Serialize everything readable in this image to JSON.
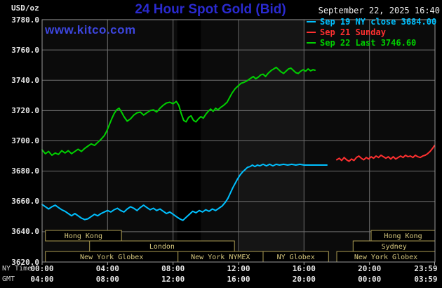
{
  "header": {
    "units": "USD/oz",
    "title": "24 Hour Spot Gold (Bid)",
    "datetime": "September 22, 2025 16:40",
    "watermark": "www.kitco.com"
  },
  "legend": [
    {
      "label": "Sep 19 NY close 3684.00",
      "color": "#00c0ff"
    },
    {
      "label": "Sep 21 Sunday",
      "color": "#ff3030"
    },
    {
      "label": "Sep 22 Last 3746.60",
      "color": "#00d000"
    }
  ],
  "axes": {
    "y": {
      "min": 3620,
      "max": 3780,
      "step": 20,
      "labels": [
        "3780.0",
        "3760.0",
        "3740.0",
        "3720.0",
        "3700.0",
        "3680.0",
        "3660.0",
        "3640.0",
        "3620.0"
      ]
    },
    "ny": {
      "label": "NY Time",
      "ticks": [
        "00:00",
        "04:00",
        "08:00",
        "12:00",
        "16:00",
        "20:00",
        "23:59"
      ]
    },
    "gmt": {
      "label": "GMT",
      "ticks": [
        "04:00",
        "08:00",
        "12:00",
        "16:00",
        "20:00",
        "00:00",
        "03:59"
      ]
    },
    "tick_hours": [
      0,
      4,
      8,
      12,
      16,
      20,
      23.98
    ],
    "grid_hours": [
      4,
      8,
      12,
      16,
      20
    ]
  },
  "sessions": {
    "border_color": "#ab9b52",
    "text_color": "#d6c77e",
    "rows": [
      [
        {
          "label": "Hong Kong",
          "start": 0.2,
          "end": 4.85
        },
        {
          "label": "Hong Kong",
          "start": 20.1,
          "end": 24
        }
      ],
      [
        {
          "label": "London",
          "start": 2.9,
          "end": 11.75
        },
        {
          "label": "Sydney",
          "start": 19.0,
          "end": 24
        }
      ],
      [
        {
          "label": "New York Globex",
          "start": 0.2,
          "end": 8.3
        },
        {
          "label": "New York NYMEX",
          "start": 8.3,
          "end": 13.5
        },
        {
          "label": "NY Globex",
          "start": 13.5,
          "end": 17.5
        },
        {
          "label": "New York Globex",
          "start": 18.0,
          "end": 24
        }
      ]
    ]
  },
  "chart_data": {
    "type": "line",
    "title": "24 Hour Spot Gold (Bid)",
    "xlabel": "NY Time (hours 0-24)",
    "ylabel": "USD/oz",
    "ylim": [
      3620,
      3780
    ],
    "xlim_hours": [
      0,
      24
    ],
    "grid": true,
    "legend_position": "top-right",
    "bands": [
      {
        "start": 8.25,
        "end": 9.7,
        "color": "#000000"
      },
      {
        "start": 12.05,
        "end": 16.0,
        "color": "#151515"
      }
    ],
    "series": [
      {
        "id": "sep19",
        "name": "Sep 19 NY close 3684.00",
        "color": "#00c0ff",
        "points": [
          [
            0,
            3658
          ],
          [
            0.2,
            3656.5
          ],
          [
            0.4,
            3655
          ],
          [
            0.6,
            3656.5
          ],
          [
            0.8,
            3657.5
          ],
          [
            1.0,
            3656
          ],
          [
            1.2,
            3654.5
          ],
          [
            1.4,
            3653.5
          ],
          [
            1.6,
            3652
          ],
          [
            1.8,
            3650.5
          ],
          [
            2.0,
            3652
          ],
          [
            2.2,
            3650.5
          ],
          [
            2.4,
            3649
          ],
          [
            2.6,
            3648
          ],
          [
            2.8,
            3648.5
          ],
          [
            3.0,
            3650
          ],
          [
            3.2,
            3651.5
          ],
          [
            3.4,
            3650.5
          ],
          [
            3.6,
            3652
          ],
          [
            3.8,
            3653
          ],
          [
            4.0,
            3654
          ],
          [
            4.2,
            3653
          ],
          [
            4.4,
            3654.5
          ],
          [
            4.6,
            3655.5
          ],
          [
            4.8,
            3654
          ],
          [
            5.0,
            3653
          ],
          [
            5.2,
            3655
          ],
          [
            5.4,
            3656.5
          ],
          [
            5.6,
            3655.5
          ],
          [
            5.8,
            3654
          ],
          [
            6.0,
            3656
          ],
          [
            6.2,
            3657.5
          ],
          [
            6.4,
            3656
          ],
          [
            6.6,
            3654.5
          ],
          [
            6.8,
            3655.5
          ],
          [
            7.0,
            3654
          ],
          [
            7.2,
            3655
          ],
          [
            7.4,
            3653.5
          ],
          [
            7.6,
            3652
          ],
          [
            7.8,
            3653
          ],
          [
            8.0,
            3651.5
          ],
          [
            8.2,
            3650
          ],
          [
            8.4,
            3648.5
          ],
          [
            8.6,
            3647.5
          ],
          [
            8.8,
            3649.5
          ],
          [
            9.0,
            3651.5
          ],
          [
            9.2,
            3653.5
          ],
          [
            9.4,
            3652.5
          ],
          [
            9.6,
            3654
          ],
          [
            9.8,
            3653
          ],
          [
            10.0,
            3654.5
          ],
          [
            10.2,
            3653.5
          ],
          [
            10.4,
            3655
          ],
          [
            10.6,
            3654
          ],
          [
            10.8,
            3655.5
          ],
          [
            11.0,
            3657
          ],
          [
            11.2,
            3659.5
          ],
          [
            11.35,
            3662
          ],
          [
            11.5,
            3665.5
          ],
          [
            11.65,
            3669
          ],
          [
            11.8,
            3672
          ],
          [
            11.95,
            3675
          ],
          [
            12.1,
            3677.5
          ],
          [
            12.25,
            3679.5
          ],
          [
            12.4,
            3681
          ],
          [
            12.55,
            3682.5
          ],
          [
            12.7,
            3683
          ],
          [
            12.85,
            3684
          ],
          [
            13.0,
            3683
          ],
          [
            13.15,
            3684
          ],
          [
            13.3,
            3683.5
          ],
          [
            13.5,
            3684.5
          ],
          [
            13.7,
            3683.5
          ],
          [
            13.9,
            3684.5
          ],
          [
            14.1,
            3683.5
          ],
          [
            14.3,
            3684.5
          ],
          [
            14.5,
            3684
          ],
          [
            14.75,
            3684.5
          ],
          [
            15.0,
            3684
          ],
          [
            15.25,
            3684.5
          ],
          [
            15.5,
            3684
          ],
          [
            15.75,
            3684.5
          ],
          [
            16.0,
            3684
          ],
          [
            16.3,
            3684
          ],
          [
            16.6,
            3684
          ],
          [
            16.9,
            3684
          ],
          [
            17.2,
            3684
          ],
          [
            17.4,
            3684
          ]
        ]
      },
      {
        "id": "sep21",
        "name": "Sep 21 Sunday",
        "color": "#ff3030",
        "points": [
          [
            18.0,
            3687.5
          ],
          [
            18.15,
            3688.5
          ],
          [
            18.3,
            3687
          ],
          [
            18.45,
            3689
          ],
          [
            18.6,
            3687.5
          ],
          [
            18.75,
            3686.5
          ],
          [
            18.9,
            3688
          ],
          [
            19.05,
            3687
          ],
          [
            19.2,
            3689
          ],
          [
            19.35,
            3690
          ],
          [
            19.5,
            3688.5
          ],
          [
            19.65,
            3687.5
          ],
          [
            19.8,
            3689
          ],
          [
            19.95,
            3688
          ],
          [
            20.1,
            3689.5
          ],
          [
            20.25,
            3688.5
          ],
          [
            20.4,
            3690
          ],
          [
            20.55,
            3689
          ],
          [
            20.7,
            3690.5
          ],
          [
            20.85,
            3689.5
          ],
          [
            21.0,
            3688.5
          ],
          [
            21.15,
            3689.5
          ],
          [
            21.3,
            3688
          ],
          [
            21.45,
            3689.5
          ],
          [
            21.6,
            3688
          ],
          [
            21.75,
            3689
          ],
          [
            21.9,
            3690
          ],
          [
            22.05,
            3689
          ],
          [
            22.2,
            3690.5
          ],
          [
            22.35,
            3689.5
          ],
          [
            22.5,
            3690
          ],
          [
            22.65,
            3689
          ],
          [
            22.8,
            3690.5
          ],
          [
            22.95,
            3689.5
          ],
          [
            23.1,
            3689
          ],
          [
            23.25,
            3690
          ],
          [
            23.4,
            3690.5
          ],
          [
            23.55,
            3691.5
          ],
          [
            23.7,
            3693
          ],
          [
            23.85,
            3695
          ],
          [
            23.98,
            3697
          ]
        ]
      },
      {
        "id": "sep22",
        "name": "Sep 22 Last 3746.60",
        "color": "#00d000",
        "points": [
          [
            0,
            3694
          ],
          [
            0.2,
            3691.5
          ],
          [
            0.4,
            3693
          ],
          [
            0.6,
            3690.5
          ],
          [
            0.8,
            3692
          ],
          [
            1.0,
            3691
          ],
          [
            1.2,
            3693.5
          ],
          [
            1.4,
            3692
          ],
          [
            1.6,
            3693.5
          ],
          [
            1.8,
            3691.5
          ],
          [
            2.0,
            3693
          ],
          [
            2.2,
            3694.5
          ],
          [
            2.4,
            3693
          ],
          [
            2.6,
            3695
          ],
          [
            2.8,
            3696.5
          ],
          [
            3.0,
            3698
          ],
          [
            3.2,
            3697
          ],
          [
            3.4,
            3699
          ],
          [
            3.6,
            3701
          ],
          [
            3.8,
            3703.5
          ],
          [
            3.95,
            3706.5
          ],
          [
            4.1,
            3710.5
          ],
          [
            4.25,
            3714.5
          ],
          [
            4.4,
            3718
          ],
          [
            4.55,
            3720.5
          ],
          [
            4.7,
            3721.5
          ],
          [
            4.85,
            3719
          ],
          [
            5.0,
            3716
          ],
          [
            5.2,
            3713
          ],
          [
            5.4,
            3714.5
          ],
          [
            5.6,
            3717
          ],
          [
            5.8,
            3718.5
          ],
          [
            6.0,
            3719
          ],
          [
            6.2,
            3717
          ],
          [
            6.4,
            3718.5
          ],
          [
            6.6,
            3720
          ],
          [
            6.8,
            3720.5
          ],
          [
            7.0,
            3719
          ],
          [
            7.2,
            3721.5
          ],
          [
            7.4,
            3723.5
          ],
          [
            7.6,
            3725
          ],
          [
            7.8,
            3725.5
          ],
          [
            8.0,
            3724.5
          ],
          [
            8.2,
            3726
          ],
          [
            8.35,
            3723.5
          ],
          [
            8.5,
            3718
          ],
          [
            8.65,
            3713.5
          ],
          [
            8.8,
            3712.5
          ],
          [
            8.95,
            3715.5
          ],
          [
            9.1,
            3716.5
          ],
          [
            9.25,
            3713.5
          ],
          [
            9.4,
            3712.5
          ],
          [
            9.55,
            3714.5
          ],
          [
            9.7,
            3716
          ],
          [
            9.85,
            3715
          ],
          [
            10.0,
            3717.5
          ],
          [
            10.15,
            3719.5
          ],
          [
            10.3,
            3721
          ],
          [
            10.45,
            3719.5
          ],
          [
            10.6,
            3721.5
          ],
          [
            10.75,
            3720.5
          ],
          [
            10.9,
            3722
          ],
          [
            11.1,
            3723.5
          ],
          [
            11.3,
            3725.5
          ],
          [
            11.45,
            3728.5
          ],
          [
            11.6,
            3731.5
          ],
          [
            11.8,
            3734.5
          ],
          [
            12.0,
            3736.5
          ],
          [
            12.15,
            3738
          ],
          [
            12.3,
            3738.5
          ],
          [
            12.5,
            3739.5
          ],
          [
            12.7,
            3741
          ],
          [
            12.9,
            3742.5
          ],
          [
            13.05,
            3741
          ],
          [
            13.2,
            3742
          ],
          [
            13.35,
            3743.5
          ],
          [
            13.5,
            3744
          ],
          [
            13.65,
            3742.5
          ],
          [
            13.8,
            3744.5
          ],
          [
            14.0,
            3746.5
          ],
          [
            14.15,
            3747.5
          ],
          [
            14.3,
            3748.5
          ],
          [
            14.45,
            3747
          ],
          [
            14.6,
            3745.5
          ],
          [
            14.75,
            3744.5
          ],
          [
            14.9,
            3746
          ],
          [
            15.05,
            3747.5
          ],
          [
            15.2,
            3748
          ],
          [
            15.35,
            3746.5
          ],
          [
            15.5,
            3745
          ],
          [
            15.65,
            3744.5
          ],
          [
            15.8,
            3746
          ],
          [
            15.95,
            3747
          ],
          [
            16.1,
            3746
          ],
          [
            16.25,
            3747.5
          ],
          [
            16.4,
            3746.2
          ],
          [
            16.55,
            3747
          ],
          [
            16.67,
            3746.6
          ]
        ]
      }
    ]
  }
}
